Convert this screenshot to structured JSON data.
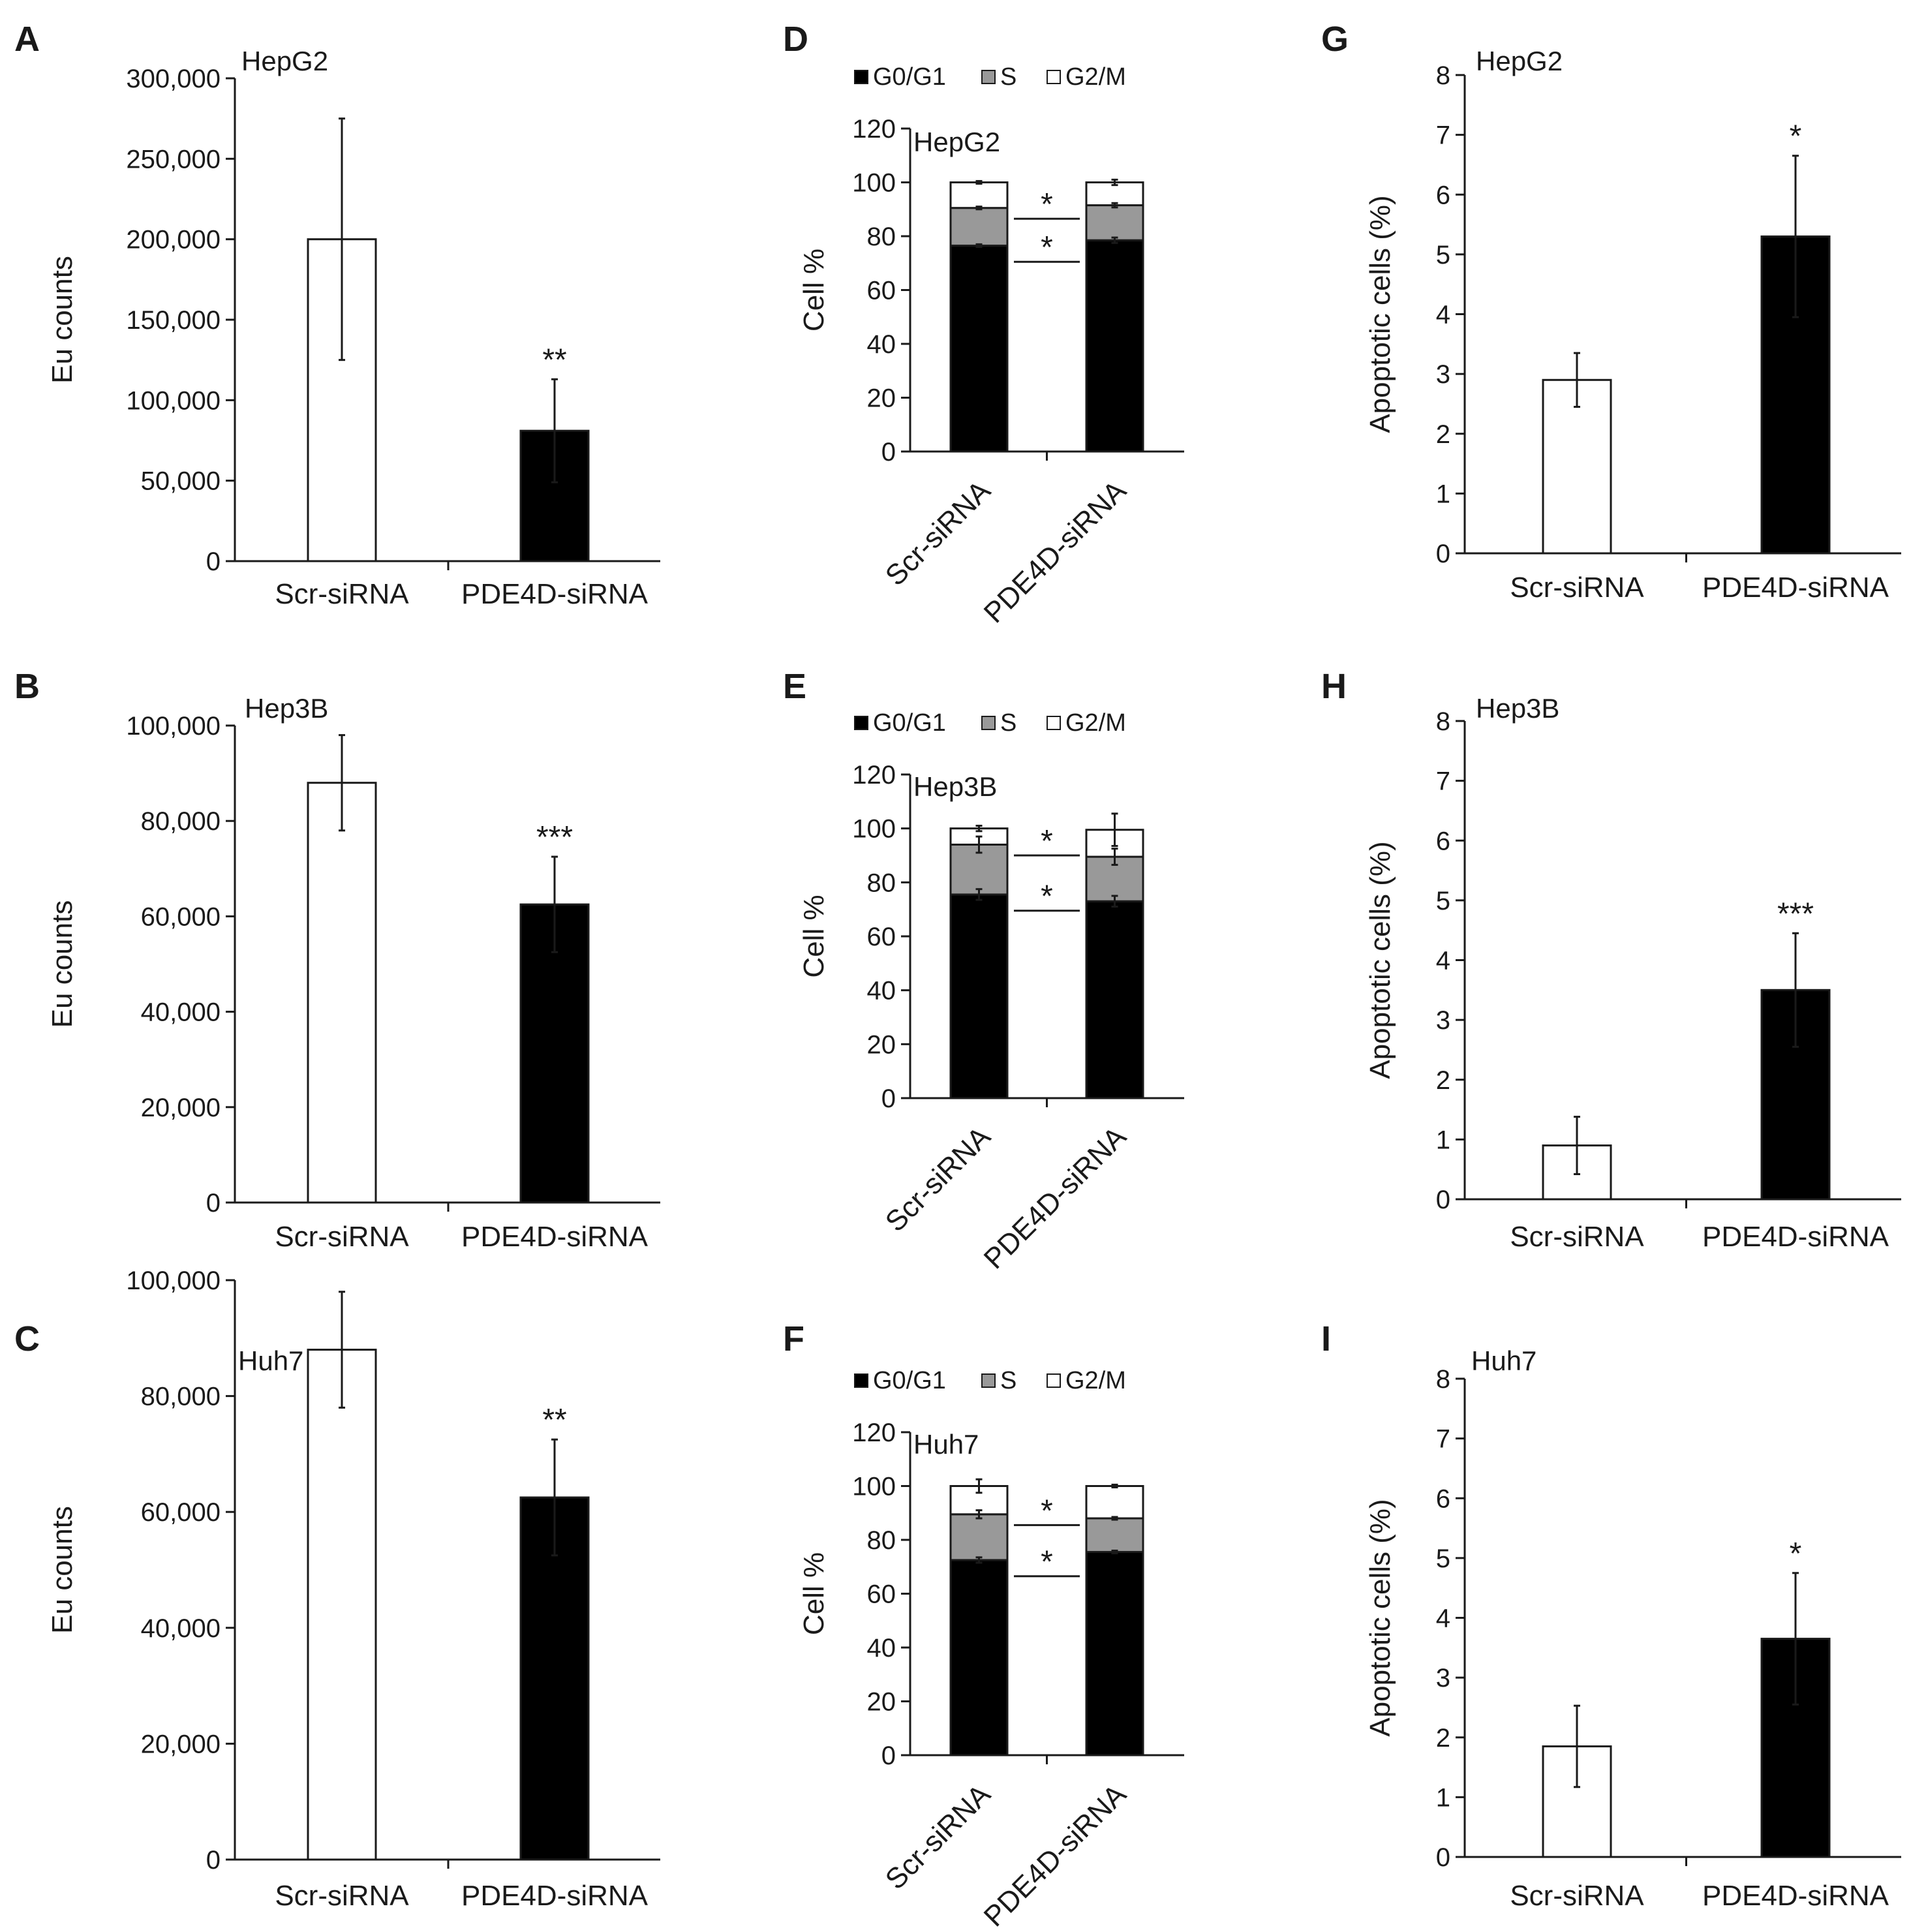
{
  "colors": {
    "white_bar": "#ffffff",
    "black_bar": "#000000",
    "s_phase": "#999999",
    "outline": "#1a1a1a"
  },
  "chart_data": [
    {
      "id": "A",
      "type": "bar",
      "title": "HepG2",
      "ylabel": "Eu counts",
      "categories": [
        "Scr-siRNA",
        "PDE4D-siRNA"
      ],
      "values": [
        200000,
        81000
      ],
      "errors": [
        75000,
        32000
      ],
      "ylim": [
        0,
        300000
      ],
      "yticks": [
        0,
        50000,
        100000,
        150000,
        200000,
        250000,
        300000
      ],
      "ytick_labels": [
        "0",
        "50,000",
        "100,000",
        "150,000",
        "200,000",
        "250,000",
        "300,000"
      ],
      "significance": [
        "",
        "**"
      ]
    },
    {
      "id": "B",
      "type": "bar",
      "title": "Hep3B",
      "ylabel": "Eu counts",
      "categories": [
        "Scr-siRNA",
        "PDE4D-siRNA"
      ],
      "values": [
        88000,
        62500
      ],
      "errors": [
        10000,
        10000
      ],
      "ylim": [
        0,
        100000
      ],
      "yticks": [
        0,
        20000,
        40000,
        60000,
        80000,
        100000
      ],
      "ytick_labels": [
        "0",
        "20,000",
        "40,000",
        "60,000",
        "80,000",
        "100,000"
      ],
      "significance": [
        "",
        "***"
      ]
    },
    {
      "id": "C",
      "type": "bar",
      "title": "Huh7",
      "ylabel": "Eu counts",
      "categories": [
        "Scr-siRNA",
        "PDE4D-siRNA"
      ],
      "values": [
        88000,
        62500
      ],
      "errors": [
        10000,
        10000
      ],
      "ylim": [
        0,
        100000
      ],
      "yticks": [
        0,
        20000,
        40000,
        60000,
        80000,
        100000
      ],
      "ytick_labels": [
        "0",
        "20,000",
        "40,000",
        "60,000",
        "80,000",
        "100,000"
      ],
      "significance": [
        "",
        "**"
      ]
    },
    {
      "id": "D",
      "type": "stacked-bar",
      "title": "HepG2",
      "ylabel": "Cell %",
      "categories": [
        "Scr-siRNA",
        "PDE4D-siRNA"
      ],
      "legend": [
        "G0/G1",
        "S",
        "G2/M"
      ],
      "series": [
        {
          "name": "G0/G1",
          "values": [
            76.5,
            78.5
          ],
          "errors": [
            0.5,
            1.0
          ]
        },
        {
          "name": "S",
          "values": [
            14,
            13
          ],
          "errors": [
            0.5,
            0.8
          ]
        },
        {
          "name": "G2/M",
          "values": [
            9.5,
            8.5
          ],
          "errors": [
            0.5,
            1.0
          ]
        }
      ],
      "ylim": [
        0,
        120
      ],
      "yticks": [
        0,
        20,
        40,
        60,
        80,
        100,
        120
      ],
      "ytick_labels": [
        "0",
        "20",
        "40",
        "60",
        "80",
        "100",
        "120"
      ],
      "sig_marks": [
        "*",
        "*"
      ]
    },
    {
      "id": "E",
      "type": "stacked-bar",
      "title": "Hep3B",
      "ylabel": "Cell %",
      "categories": [
        "Scr-siRNA",
        "PDE4D-siRNA"
      ],
      "legend": [
        "G0/G1",
        "S",
        "G2/M"
      ],
      "series": [
        {
          "name": "G0/G1",
          "values": [
            75.5,
            73
          ],
          "errors": [
            2.0,
            2.0
          ]
        },
        {
          "name": "S",
          "values": [
            18.5,
            16.5
          ],
          "errors": [
            3.0,
            3.0
          ]
        },
        {
          "name": "G2/M",
          "values": [
            6,
            10
          ],
          "errors": [
            1.0,
            6.0
          ]
        }
      ],
      "ylim": [
        0,
        120
      ],
      "yticks": [
        0,
        20,
        40,
        60,
        80,
        100,
        120
      ],
      "ytick_labels": [
        "0",
        "20",
        "40",
        "60",
        "80",
        "100",
        "120"
      ],
      "sig_marks": [
        "*",
        "*"
      ]
    },
    {
      "id": "F",
      "type": "stacked-bar",
      "title": "Huh7",
      "ylabel": "Cell %",
      "categories": [
        "Scr-siRNA",
        "PDE4D-siRNA"
      ],
      "legend": [
        "G0/G1",
        "S",
        "G2/M"
      ],
      "series": [
        {
          "name": "G0/G1",
          "values": [
            72.5,
            75.5
          ],
          "errors": [
            1.0,
            0.5
          ]
        },
        {
          "name": "S",
          "values": [
            17,
            12.5
          ],
          "errors": [
            1.5,
            0.5
          ]
        },
        {
          "name": "G2/M",
          "values": [
            10.5,
            12
          ],
          "errors": [
            2.5,
            0.5
          ]
        }
      ],
      "ylim": [
        0,
        120
      ],
      "yticks": [
        0,
        20,
        40,
        60,
        80,
        100,
        120
      ],
      "ytick_labels": [
        "0",
        "20",
        "40",
        "60",
        "80",
        "100",
        "120"
      ],
      "sig_marks": [
        "*",
        "*"
      ]
    },
    {
      "id": "G",
      "type": "bar",
      "title": "HepG2",
      "ylabel": "Apoptotic cells (%)",
      "categories": [
        "Scr-siRNA",
        "PDE4D-siRNA"
      ],
      "values": [
        2.9,
        5.3
      ],
      "errors": [
        0.45,
        1.35
      ],
      "ylim": [
        0,
        8
      ],
      "yticks": [
        0,
        1,
        2,
        3,
        4,
        5,
        6,
        7,
        8
      ],
      "ytick_labels": [
        "0",
        "1",
        "2",
        "3",
        "4",
        "5",
        "6",
        "7",
        "8"
      ],
      "significance": [
        "",
        "*"
      ]
    },
    {
      "id": "H",
      "type": "bar",
      "title": "Hep3B",
      "ylabel": "Apoptotic cells (%)",
      "categories": [
        "Scr-siRNA",
        "PDE4D-siRNA"
      ],
      "values": [
        0.9,
        3.5
      ],
      "errors": [
        0.48,
        0.95
      ],
      "ylim": [
        0,
        8
      ],
      "yticks": [
        0,
        1,
        2,
        3,
        4,
        5,
        6,
        7,
        8
      ],
      "ytick_labels": [
        "0",
        "1",
        "2",
        "3",
        "4",
        "5",
        "6",
        "7",
        "8"
      ],
      "significance": [
        "",
        "***"
      ]
    },
    {
      "id": "I",
      "type": "bar",
      "title": "Huh7",
      "ylabel": "Apoptotic cells (%)",
      "categories": [
        "Scr-siRNA",
        "PDE4D-siRNA"
      ],
      "values": [
        1.85,
        3.65
      ],
      "errors": [
        0.68,
        1.1
      ],
      "ylim": [
        0,
        8
      ],
      "yticks": [
        0,
        1,
        2,
        3,
        4,
        5,
        6,
        7,
        8
      ],
      "ytick_labels": [
        "0",
        "1",
        "2",
        "3",
        "4",
        "5",
        "6",
        "7",
        "8"
      ],
      "significance": [
        "",
        "*"
      ]
    }
  ]
}
